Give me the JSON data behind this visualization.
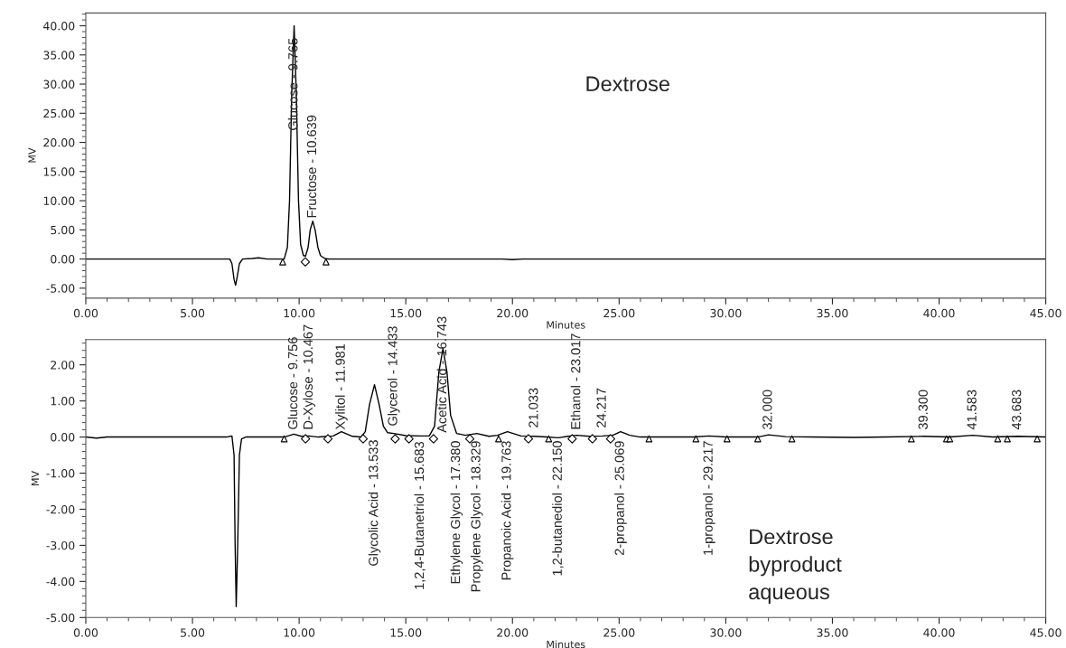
{
  "chart_data": [
    {
      "type": "line",
      "xlabel": "Minutes",
      "ylabel": "MV",
      "grid": false,
      "legend": false,
      "xlim": [
        0,
        45
      ],
      "ylim": [
        -6.7,
        42.2
      ],
      "xticks": [
        {
          "value": 0,
          "label": "0.00"
        },
        {
          "value": 5,
          "label": "5.00"
        },
        {
          "value": 10,
          "label": "10.00"
        },
        {
          "value": 15,
          "label": "15.00"
        },
        {
          "value": 20,
          "label": "20.00"
        },
        {
          "value": 25,
          "label": "25.00"
        },
        {
          "value": 30,
          "label": "30.00"
        },
        {
          "value": 35,
          "label": "35.00"
        },
        {
          "value": 40,
          "label": "40.00"
        },
        {
          "value": 45,
          "label": "45.00"
        }
      ],
      "yticks": [
        {
          "value": -5,
          "label": "-5.00"
        },
        {
          "value": 0,
          "label": "0.00"
        },
        {
          "value": 5,
          "label": "5.00"
        },
        {
          "value": 10,
          "label": "10.00"
        },
        {
          "value": 15,
          "label": "15.00"
        },
        {
          "value": 20,
          "label": "20.00"
        },
        {
          "value": 25,
          "label": "25.00"
        },
        {
          "value": 30,
          "label": "30.00"
        },
        {
          "value": 35,
          "label": "35.00"
        },
        {
          "value": 40,
          "label": "40.00"
        }
      ],
      "series": [
        {
          "type": "line",
          "color": "#000000",
          "marker": "none",
          "line_style": "solid",
          "x": [
            0,
            6.75,
            6.85,
            6.95,
            7.02,
            7.1,
            7.2,
            7.35,
            7.8,
            8.1,
            8.5,
            9.0,
            9.3,
            9.45,
            9.55,
            9.65,
            9.765,
            9.87,
            9.97,
            10.07,
            10.2,
            10.3,
            10.42,
            10.52,
            10.639,
            10.75,
            10.88,
            11.0,
            11.2,
            11.4,
            19.5,
            20.0,
            20.5,
            45
          ],
          "values": [
            0,
            0,
            -0.8,
            -3.5,
            -4.5,
            -3,
            -0.8,
            0,
            0.1,
            0.2,
            0,
            0,
            0,
            2,
            10,
            28,
            40,
            28,
            10,
            2.5,
            0.6,
            0.5,
            2,
            5,
            6.5,
            5,
            2,
            0.6,
            0.1,
            0,
            0,
            -0.1,
            0,
            0
          ]
        },
        {
          "type": "scatter",
          "color": "#000000",
          "marker": "triangle",
          "x": [
            9.23,
            11.26
          ],
          "values": [
            -0.5,
            -0.5
          ]
        },
        {
          "type": "scatter",
          "color": "#000000",
          "marker": "diamond",
          "x": [
            10.29
          ],
          "values": [
            -0.5
          ]
        }
      ],
      "annotations": [
        {
          "text": "Glucose - 9.765",
          "x": 9.765,
          "y": 40
        },
        {
          "text": "Fructose - 10.639",
          "x": 10.639,
          "y": 6.5
        },
        "Dextrose"
      ]
    },
    {
      "type": "line",
      "xlabel": "Minutes",
      "ylabel": "MV",
      "grid": false,
      "legend": false,
      "xlim": [
        0,
        45
      ],
      "ylim": [
        -5,
        2.7
      ],
      "xticks": [
        {
          "value": 0,
          "label": "0.00"
        },
        {
          "value": 5,
          "label": "5.00"
        },
        {
          "value": 10,
          "label": "10.00"
        },
        {
          "value": 15,
          "label": "15.00"
        },
        {
          "value": 20,
          "label": "20.00"
        },
        {
          "value": 25,
          "label": "25.00"
        },
        {
          "value": 30,
          "label": "30.00"
        },
        {
          "value": 35,
          "label": "35.00"
        },
        {
          "value": 40,
          "label": "40.00"
        },
        {
          "value": 45,
          "label": "45.00"
        }
      ],
      "yticks": [
        {
          "value": -5,
          "label": "-5.00"
        },
        {
          "value": -4,
          "label": "-4.00"
        },
        {
          "value": -3,
          "label": "-3.00"
        },
        {
          "value": -2,
          "label": "-2.00"
        },
        {
          "value": -1,
          "label": "-1.00"
        },
        {
          "value": 0,
          "label": "0.00"
        },
        {
          "value": 1,
          "label": "1.00"
        },
        {
          "value": 2,
          "label": "2.00"
        }
      ],
      "series": [
        {
          "type": "line",
          "color": "#000000",
          "marker": "none",
          "line_style": "solid",
          "x": [
            0,
            0.5,
            1,
            6.6,
            6.85,
            6.95,
            7.0,
            7.05,
            7.12,
            7.2,
            7.3,
            7.5,
            8.5,
            9.3,
            9.756,
            10.1,
            10.467,
            10.9,
            11.6,
            11.981,
            12.5,
            12.9,
            13.1,
            13.3,
            13.533,
            13.75,
            13.95,
            14.15,
            14.433,
            15.0,
            15.683,
            16.1,
            16.35,
            16.55,
            16.743,
            16.93,
            17.1,
            17.38,
            17.8,
            18.33,
            18.9,
            19.3,
            19.763,
            20.4,
            21.033,
            21.6,
            22.15,
            22.6,
            23.017,
            23.6,
            24.217,
            24.7,
            25.069,
            25.5,
            26,
            28.5,
            29.217,
            30,
            31.5,
            32.0,
            32.8,
            34,
            36,
            37.5,
            39.3,
            40.5,
            41.583,
            42.5,
            43.683,
            45
          ],
          "values": [
            0,
            -0.03,
            0,
            0,
            0.03,
            -0.5,
            -3,
            -4.7,
            -3,
            -0.5,
            -0.05,
            0,
            0,
            0,
            0.08,
            0.02,
            0.03,
            0,
            0.03,
            0.15,
            0.02,
            0,
            0.15,
            0.9,
            1.45,
            0.9,
            0.3,
            0.12,
            0.1,
            0.04,
            0.03,
            0.03,
            0.3,
            1.8,
            2.45,
            1.8,
            0.6,
            0.1,
            0.05,
            0.1,
            0.02,
            0.05,
            0.15,
            0.03,
            0.02,
            0,
            -0.02,
            0.02,
            0.05,
            0.02,
            0.03,
            0.05,
            0.15,
            0.05,
            0,
            0,
            0.03,
            0,
            0,
            0.06,
            0.01,
            0,
            -0.01,
            0,
            0.02,
            0,
            0.05,
            0,
            0.02,
            0
          ]
        },
        {
          "type": "scatter",
          "color": "#000000",
          "marker": "triangle",
          "x": [
            9.3,
            19.35,
            21.7,
            26.4,
            28.6,
            30.06,
            31.5,
            33.1,
            38.7,
            40.35,
            40.5,
            42.75,
            43.2,
            44.6
          ],
          "values": [
            -0.05,
            -0.05,
            -0.05,
            -0.05,
            -0.05,
            -0.05,
            -0.05,
            -0.05,
            -0.05,
            -0.05,
            -0.05,
            -0.05,
            -0.05,
            -0.05
          ]
        },
        {
          "type": "scatter",
          "color": "#000000",
          "marker": "diamond",
          "x": [
            10.3,
            11.35,
            13.0,
            14.5,
            15.15,
            16.3,
            18.0,
            20.75,
            22.8,
            23.75,
            24.6
          ],
          "values": [
            -0.05,
            -0.05,
            -0.05,
            -0.05,
            -0.05,
            -0.05,
            -0.05,
            -0.05,
            -0.05,
            -0.05,
            -0.05
          ]
        }
      ],
      "annotations": [
        {
          "text": "Glucose - 9.756",
          "x": 9.756,
          "y": 0.08
        },
        {
          "text": "D-Xylose - 10.467",
          "x": 10.467,
          "y": 0.03
        },
        {
          "text": "Xylitol - 11.981",
          "x": 11.981,
          "y": 0.15
        },
        "Glycolic Acid - 13.533",
        {
          "text": "Glycerol - 14.433",
          "x": 14.433,
          "y": 0.1
        },
        {
          "text": "1,2,4-Butanetriol - 15.683",
          "x": 15.683,
          "y": 0.03
        },
        {
          "text": "Acetic Acid - 16.743",
          "x": 16.743,
          "y": 2.45
        },
        {
          "text": "Ethylene Glycol - 17.380",
          "x": 17.38,
          "y": 0.1
        },
        {
          "text": "Propylene Glycol - 18.329",
          "x": 18.33,
          "y": 0.1
        },
        {
          "text": "Propanoic Acid - 19.763",
          "x": 19.763,
          "y": 0.15
        },
        {
          "text": "21.033",
          "x": 21.033,
          "y": 0.02
        },
        {
          "text": "1,2-butanediol - 22.150",
          "x": 22.15,
          "y": -0.02
        },
        {
          "text": "Ethanol - 23.017",
          "x": 23.017,
          "y": 0.05
        },
        {
          "text": "24.217",
          "x": 24.217,
          "y": 0.03
        },
        {
          "text": "2-propanol - 25.069",
          "x": 25.069,
          "y": 0.15
        },
        {
          "text": "1-propanol - 29.217",
          "x": 29.217,
          "y": 0.03
        },
        {
          "text": "32.000",
          "x": 32.0,
          "y": 0.06
        },
        {
          "text": "39.300",
          "x": 39.3,
          "y": 0.02
        },
        {
          "text": "41.583",
          "x": 41.583,
          "y": 0.05
        },
        {
          "text": "43.683",
          "x": 43.683,
          "y": 0.02
        },
        "Dextrose\nbyproduct\naqueous"
      ]
    }
  ]
}
